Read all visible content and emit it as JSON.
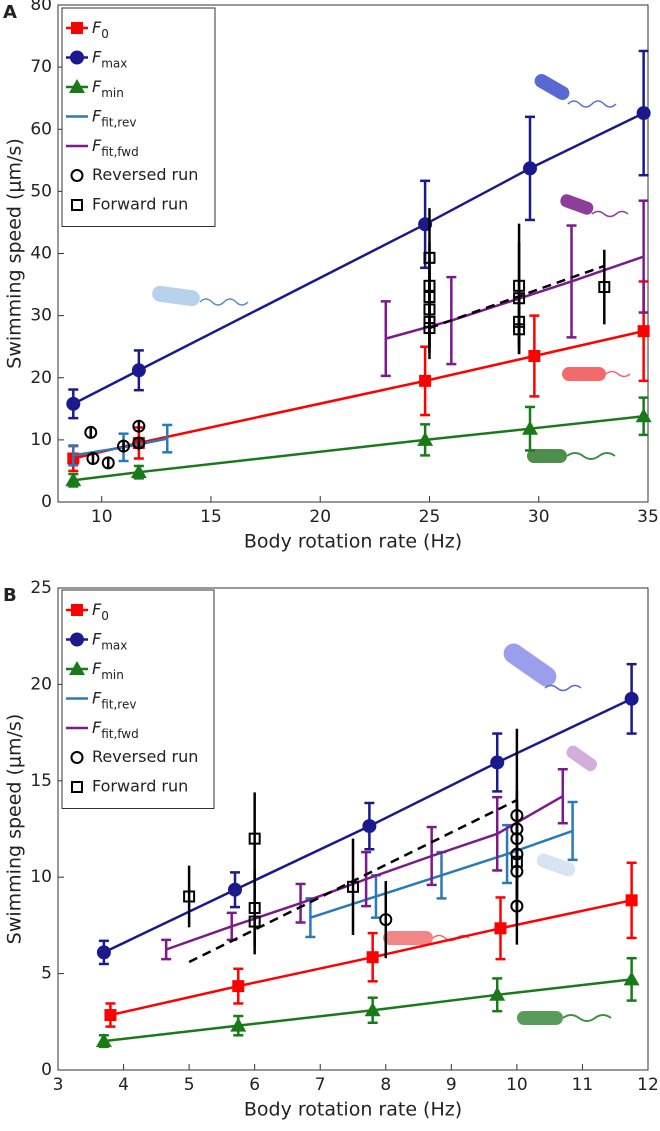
{
  "chart_data": [
    {
      "type": "errorbar",
      "panel": "A",
      "xlabel": "Body rotation rate (Hz)",
      "ylabel": "Swimming speed (μm/s)",
      "xlim": [
        8,
        35
      ],
      "xticks": [
        10,
        15,
        20,
        25,
        30,
        35
      ],
      "ylim": [
        0,
        80
      ],
      "yticks": [
        0,
        10,
        20,
        30,
        40,
        50,
        60,
        70,
        80
      ],
      "series": [
        {
          "name": "F0",
          "name_style": "subscript",
          "color": "#ff0000",
          "marker": "square",
          "line": "solid",
          "caps": true,
          "x": [
            8.7,
            11.7,
            24.8,
            29.8,
            34.8
          ],
          "values": [
            7,
            9.5,
            19.5,
            23.5,
            27.5
          ],
          "errors": [
            2,
            2.5,
            5.5,
            6.5,
            8
          ]
        },
        {
          "name": "Fmax",
          "name_style": "subscript",
          "color": "#1a1a8c",
          "marker": "circle",
          "line": "solid",
          "caps": true,
          "x": [
            8.7,
            11.7,
            24.8,
            29.6,
            34.8
          ],
          "values": [
            15.8,
            21.2,
            44.7,
            53.7,
            62.6
          ],
          "errors": [
            2.3,
            3.2,
            7,
            8.3,
            10
          ]
        },
        {
          "name": "Fmin",
          "name_style": "subscript",
          "color": "#1a7a1a",
          "marker": "triangle",
          "line": "solid",
          "caps": true,
          "x": [
            8.7,
            11.7,
            24.8,
            29.6,
            34.8
          ],
          "values": [
            3.5,
            4.8,
            10,
            11.8,
            13.8
          ],
          "errors": [
            1,
            1,
            2.5,
            3.5,
            3
          ]
        },
        {
          "name": "Ffit,rev",
          "name_style": "subscript",
          "color": "#2a7ab8",
          "marker": "none",
          "line": "solid",
          "caps": true,
          "x": [
            8.7,
            11,
            13
          ],
          "values": [
            7.5,
            8.8,
            10.2
          ],
          "errors": [
            1.6,
            2.2,
            2.2
          ]
        },
        {
          "name": "Ffit,fwd",
          "name_style": "subscript",
          "color": "#7b1a8a",
          "marker": "none",
          "line": "solid",
          "caps": true,
          "x": [
            23,
            26,
            31.5,
            34.8
          ],
          "values": [
            26.3,
            29.2,
            35.5,
            39.5
          ],
          "errors": [
            6,
            7,
            9,
            9
          ]
        },
        {
          "name": "Reversed run",
          "color": "#000000",
          "marker": "open-circle",
          "line": "none",
          "caps": false,
          "x": [
            9.5,
            9.6,
            10.3,
            11,
            11.7,
            11.7
          ],
          "values": [
            11.2,
            7,
            6.3,
            9,
            12.2,
            9.5
          ],
          "errors": [
            0.8,
            0.8,
            1,
            1,
            1,
            1
          ]
        },
        {
          "name": "Forward run",
          "color": "#000000",
          "marker": "open-square",
          "line": "none",
          "caps": false,
          "x": [
            25,
            25,
            25,
            25,
            25,
            25,
            29.1,
            29.1,
            29.1,
            29.1,
            33
          ],
          "values": [
            39.3,
            34.8,
            33,
            31,
            29,
            28,
            34.8,
            32.8,
            29,
            27.8,
            34.6
          ],
          "errors": [
            8,
            7,
            6,
            6,
            5,
            5,
            10,
            9,
            4,
            4,
            6
          ]
        },
        {
          "color": "#000000",
          "marker": "none",
          "line": "dashed",
          "x": [
            25,
            33
          ],
          "values": [
            28,
            38
          ]
        }
      ]
    },
    {
      "type": "errorbar",
      "panel": "B",
      "xlabel": "Body rotation rate (Hz)",
      "ylabel": "Swimming speed (μm/s)",
      "xlim": [
        3,
        12
      ],
      "xticks": [
        3,
        4,
        5,
        6,
        7,
        8,
        9,
        10,
        11,
        12
      ],
      "ylim": [
        0,
        25
      ],
      "yticks": [
        0,
        5,
        10,
        15,
        20,
        25
      ],
      "series": [
        {
          "name": "F0",
          "name_style": "subscript",
          "color": "#ff0000",
          "marker": "square",
          "line": "solid",
          "caps": true,
          "x": [
            3.8,
            5.75,
            7.8,
            9.75,
            11.75
          ],
          "values": [
            2.85,
            4.35,
            5.85,
            7.35,
            8.8
          ],
          "errors": [
            0.6,
            0.9,
            1.25,
            1.6,
            1.95
          ]
        },
        {
          "name": "Fmax",
          "name_style": "subscript",
          "color": "#1a1a8c",
          "marker": "circle",
          "line": "solid",
          "caps": true,
          "x": [
            3.7,
            5.7,
            7.75,
            9.7,
            11.75
          ],
          "values": [
            6.1,
            9.35,
            12.65,
            15.95,
            19.25
          ],
          "errors": [
            0.6,
            0.9,
            1.2,
            1.5,
            1.8
          ]
        },
        {
          "name": "Fmin",
          "name_style": "subscript",
          "color": "#1a7a1a",
          "marker": "triangle",
          "line": "solid",
          "caps": true,
          "x": [
            3.7,
            5.75,
            7.8,
            9.7,
            11.75
          ],
          "values": [
            1.5,
            2.3,
            3.1,
            3.9,
            4.7
          ],
          "errors": [
            0.3,
            0.5,
            0.65,
            0.85,
            1.1
          ]
        },
        {
          "name": "Ffit,rev",
          "name_style": "subscript",
          "color": "#2a7ab8",
          "marker": "none",
          "line": "solid",
          "caps": true,
          "x": [
            6.85,
            7.85,
            8.85,
            9.85,
            10.85
          ],
          "values": [
            7.9,
            9,
            10.1,
            11.2,
            12.4
          ],
          "errors": [
            1,
            1.1,
            1.2,
            1.5,
            1.5
          ]
        },
        {
          "name": "Ffit,fwd",
          "name_style": "subscript",
          "color": "#7b1a8a",
          "marker": "none",
          "line": "solid",
          "caps": true,
          "x": [
            4.65,
            5.65,
            6.7,
            7.7,
            8.7,
            9.7,
            10.7
          ],
          "values": [
            6.25,
            7.45,
            8.65,
            9.9,
            11.1,
            12.25,
            14.2
          ],
          "errors": [
            0.5,
            0.7,
            1,
            1.4,
            1.5,
            1.9,
            1.4
          ]
        },
        {
          "name": "Reversed run",
          "color": "#000000",
          "marker": "open-circle",
          "line": "none",
          "caps": false,
          "x": [
            8,
            10,
            10,
            10,
            10,
            10,
            10
          ],
          "values": [
            7.8,
            13.2,
            12.5,
            12,
            11.2,
            10.3,
            8.5
          ],
          "errors": [
            2,
            4.5,
            2,
            2,
            2,
            2,
            2
          ]
        },
        {
          "name": "Forward run",
          "color": "#000000",
          "marker": "open-square",
          "line": "none",
          "caps": false,
          "x": [
            5,
            6,
            6,
            6,
            7.5,
            10
          ],
          "values": [
            9,
            12,
            8.4,
            7.7,
            9.5,
            10.8
          ],
          "errors": [
            1.6,
            2.4,
            2,
            1.7,
            2.5,
            3
          ]
        },
        {
          "color": "#000000",
          "marker": "none",
          "line": "dashed",
          "x": [
            5,
            10
          ],
          "values": [
            5.6,
            14
          ]
        }
      ]
    }
  ]
}
